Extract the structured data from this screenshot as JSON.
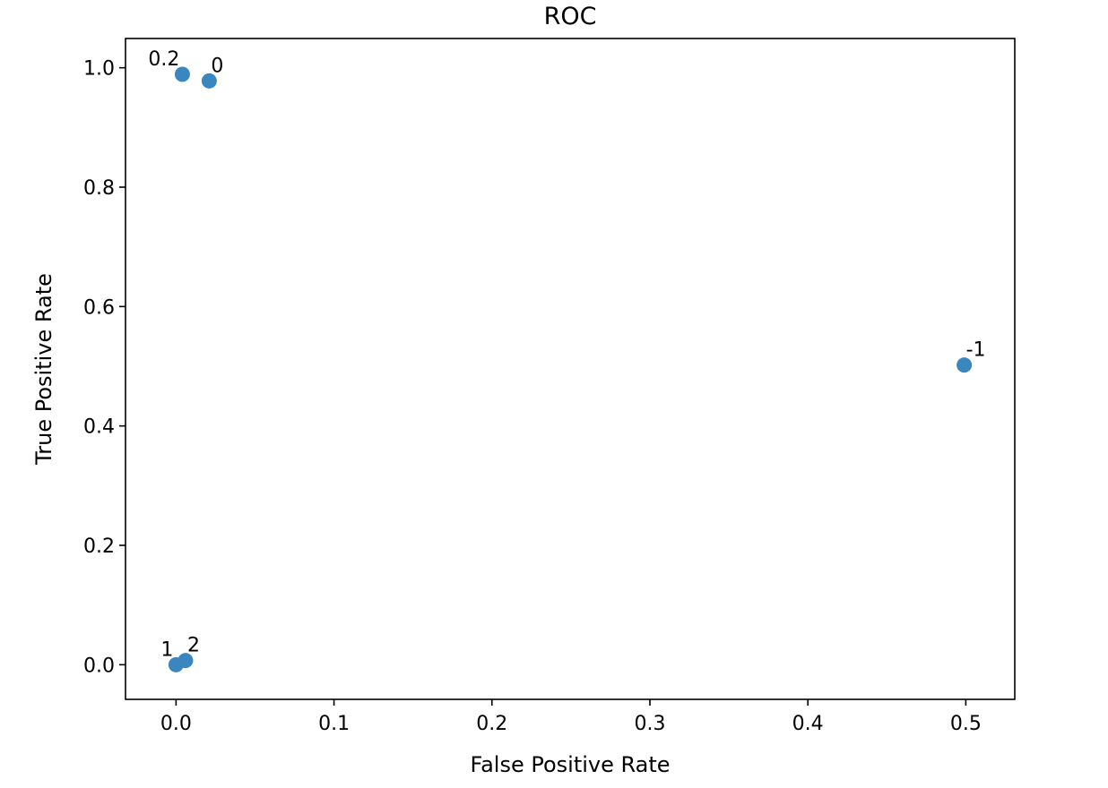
{
  "chart_data": {
    "type": "scatter",
    "title": "ROC",
    "xlabel": "False Positive Rate",
    "ylabel": "True Positive Rate",
    "xlim": [
      -0.032,
      0.531
    ],
    "ylim": [
      -0.058,
      1.049
    ],
    "xticks": [
      0.0,
      0.1,
      0.2,
      0.3,
      0.4,
      0.5
    ],
    "yticks": [
      0.0,
      0.2,
      0.4,
      0.6,
      0.8,
      1.0
    ],
    "xtick_labels": [
      "0.0",
      "0.1",
      "0.2",
      "0.3",
      "0.4",
      "0.5"
    ],
    "ytick_labels": [
      "0.0",
      "0.2",
      "0.4",
      "0.6",
      "0.8",
      "1.0"
    ],
    "grid": false,
    "point_color": "#3a86bf",
    "points": [
      {
        "label": "0.2",
        "x": 0.004,
        "y": 0.989,
        "label_side": "left"
      },
      {
        "label": "0",
        "x": 0.021,
        "y": 0.978,
        "label_side": "right"
      },
      {
        "label": "-1",
        "x": 0.499,
        "y": 0.502,
        "label_side": "right"
      },
      {
        "label": "1",
        "x": 0.0,
        "y": 0.0,
        "label_side": "left"
      },
      {
        "label": "2",
        "x": 0.006,
        "y": 0.007,
        "label_side": "right"
      }
    ]
  }
}
